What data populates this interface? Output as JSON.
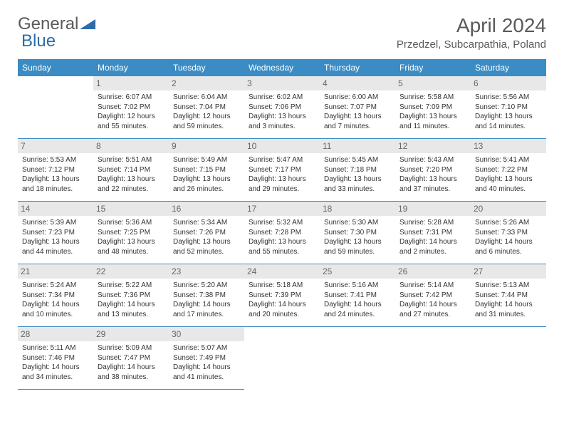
{
  "brand": {
    "part1": "General",
    "part2": "Blue"
  },
  "title": "April 2024",
  "location": "Przedzel, Subcarpathia, Poland",
  "colors": {
    "header_bg": "#3b8bc4",
    "header_fg": "#ffffff",
    "daynum_bg": "#e8e8e8",
    "border": "#3b8bc4",
    "text": "#333333",
    "title": "#5a5a5a"
  },
  "dayHeaders": [
    "Sunday",
    "Monday",
    "Tuesday",
    "Wednesday",
    "Thursday",
    "Friday",
    "Saturday"
  ],
  "weeks": [
    [
      null,
      {
        "n": "1",
        "sr": "Sunrise: 6:07 AM",
        "ss": "Sunset: 7:02 PM",
        "dl1": "Daylight: 12 hours",
        "dl2": "and 55 minutes."
      },
      {
        "n": "2",
        "sr": "Sunrise: 6:04 AM",
        "ss": "Sunset: 7:04 PM",
        "dl1": "Daylight: 12 hours",
        "dl2": "and 59 minutes."
      },
      {
        "n": "3",
        "sr": "Sunrise: 6:02 AM",
        "ss": "Sunset: 7:06 PM",
        "dl1": "Daylight: 13 hours",
        "dl2": "and 3 minutes."
      },
      {
        "n": "4",
        "sr": "Sunrise: 6:00 AM",
        "ss": "Sunset: 7:07 PM",
        "dl1": "Daylight: 13 hours",
        "dl2": "and 7 minutes."
      },
      {
        "n": "5",
        "sr": "Sunrise: 5:58 AM",
        "ss": "Sunset: 7:09 PM",
        "dl1": "Daylight: 13 hours",
        "dl2": "and 11 minutes."
      },
      {
        "n": "6",
        "sr": "Sunrise: 5:56 AM",
        "ss": "Sunset: 7:10 PM",
        "dl1": "Daylight: 13 hours",
        "dl2": "and 14 minutes."
      }
    ],
    [
      {
        "n": "7",
        "sr": "Sunrise: 5:53 AM",
        "ss": "Sunset: 7:12 PM",
        "dl1": "Daylight: 13 hours",
        "dl2": "and 18 minutes."
      },
      {
        "n": "8",
        "sr": "Sunrise: 5:51 AM",
        "ss": "Sunset: 7:14 PM",
        "dl1": "Daylight: 13 hours",
        "dl2": "and 22 minutes."
      },
      {
        "n": "9",
        "sr": "Sunrise: 5:49 AM",
        "ss": "Sunset: 7:15 PM",
        "dl1": "Daylight: 13 hours",
        "dl2": "and 26 minutes."
      },
      {
        "n": "10",
        "sr": "Sunrise: 5:47 AM",
        "ss": "Sunset: 7:17 PM",
        "dl1": "Daylight: 13 hours",
        "dl2": "and 29 minutes."
      },
      {
        "n": "11",
        "sr": "Sunrise: 5:45 AM",
        "ss": "Sunset: 7:18 PM",
        "dl1": "Daylight: 13 hours",
        "dl2": "and 33 minutes."
      },
      {
        "n": "12",
        "sr": "Sunrise: 5:43 AM",
        "ss": "Sunset: 7:20 PM",
        "dl1": "Daylight: 13 hours",
        "dl2": "and 37 minutes."
      },
      {
        "n": "13",
        "sr": "Sunrise: 5:41 AM",
        "ss": "Sunset: 7:22 PM",
        "dl1": "Daylight: 13 hours",
        "dl2": "and 40 minutes."
      }
    ],
    [
      {
        "n": "14",
        "sr": "Sunrise: 5:39 AM",
        "ss": "Sunset: 7:23 PM",
        "dl1": "Daylight: 13 hours",
        "dl2": "and 44 minutes."
      },
      {
        "n": "15",
        "sr": "Sunrise: 5:36 AM",
        "ss": "Sunset: 7:25 PM",
        "dl1": "Daylight: 13 hours",
        "dl2": "and 48 minutes."
      },
      {
        "n": "16",
        "sr": "Sunrise: 5:34 AM",
        "ss": "Sunset: 7:26 PM",
        "dl1": "Daylight: 13 hours",
        "dl2": "and 52 minutes."
      },
      {
        "n": "17",
        "sr": "Sunrise: 5:32 AM",
        "ss": "Sunset: 7:28 PM",
        "dl1": "Daylight: 13 hours",
        "dl2": "and 55 minutes."
      },
      {
        "n": "18",
        "sr": "Sunrise: 5:30 AM",
        "ss": "Sunset: 7:30 PM",
        "dl1": "Daylight: 13 hours",
        "dl2": "and 59 minutes."
      },
      {
        "n": "19",
        "sr": "Sunrise: 5:28 AM",
        "ss": "Sunset: 7:31 PM",
        "dl1": "Daylight: 14 hours",
        "dl2": "and 2 minutes."
      },
      {
        "n": "20",
        "sr": "Sunrise: 5:26 AM",
        "ss": "Sunset: 7:33 PM",
        "dl1": "Daylight: 14 hours",
        "dl2": "and 6 minutes."
      }
    ],
    [
      {
        "n": "21",
        "sr": "Sunrise: 5:24 AM",
        "ss": "Sunset: 7:34 PM",
        "dl1": "Daylight: 14 hours",
        "dl2": "and 10 minutes."
      },
      {
        "n": "22",
        "sr": "Sunrise: 5:22 AM",
        "ss": "Sunset: 7:36 PM",
        "dl1": "Daylight: 14 hours",
        "dl2": "and 13 minutes."
      },
      {
        "n": "23",
        "sr": "Sunrise: 5:20 AM",
        "ss": "Sunset: 7:38 PM",
        "dl1": "Daylight: 14 hours",
        "dl2": "and 17 minutes."
      },
      {
        "n": "24",
        "sr": "Sunrise: 5:18 AM",
        "ss": "Sunset: 7:39 PM",
        "dl1": "Daylight: 14 hours",
        "dl2": "and 20 minutes."
      },
      {
        "n": "25",
        "sr": "Sunrise: 5:16 AM",
        "ss": "Sunset: 7:41 PM",
        "dl1": "Daylight: 14 hours",
        "dl2": "and 24 minutes."
      },
      {
        "n": "26",
        "sr": "Sunrise: 5:14 AM",
        "ss": "Sunset: 7:42 PM",
        "dl1": "Daylight: 14 hours",
        "dl2": "and 27 minutes."
      },
      {
        "n": "27",
        "sr": "Sunrise: 5:13 AM",
        "ss": "Sunset: 7:44 PM",
        "dl1": "Daylight: 14 hours",
        "dl2": "and 31 minutes."
      }
    ],
    [
      {
        "n": "28",
        "sr": "Sunrise: 5:11 AM",
        "ss": "Sunset: 7:46 PM",
        "dl1": "Daylight: 14 hours",
        "dl2": "and 34 minutes."
      },
      {
        "n": "29",
        "sr": "Sunrise: 5:09 AM",
        "ss": "Sunset: 7:47 PM",
        "dl1": "Daylight: 14 hours",
        "dl2": "and 38 minutes."
      },
      {
        "n": "30",
        "sr": "Sunrise: 5:07 AM",
        "ss": "Sunset: 7:49 PM",
        "dl1": "Daylight: 14 hours",
        "dl2": "and 41 minutes."
      },
      null,
      null,
      null,
      null
    ]
  ]
}
